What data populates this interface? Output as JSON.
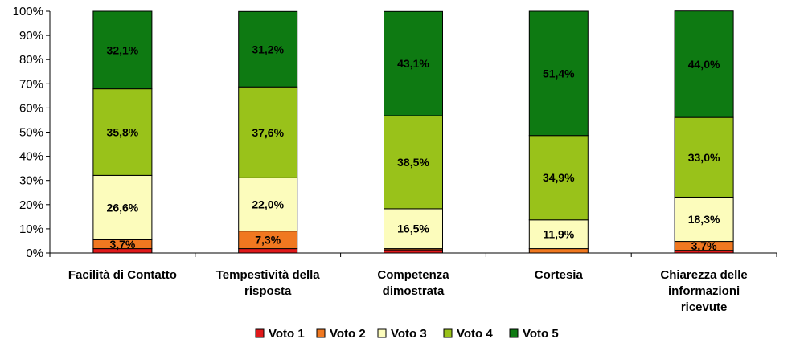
{
  "chart_data": {
    "type": "bar",
    "stacked": true,
    "categories": [
      [
        "Facilità di Contatto"
      ],
      [
        "Tempestività della",
        "risposta"
      ],
      [
        "Competenza",
        "dimostrata"
      ],
      [
        "Cortesia"
      ],
      [
        "Chiarezza delle",
        "informazioni",
        "ricevute"
      ]
    ],
    "series": [
      {
        "name": "Voto 1",
        "color": "#e0191b",
        "values": [
          1.8,
          1.8,
          1.3,
          0.0,
          1.1
        ],
        "labels": [
          "",
          "",
          "",
          "",
          ""
        ]
      },
      {
        "name": "Voto 2",
        "color": "#f07820",
        "values": [
          3.7,
          7.3,
          0.5,
          1.8,
          3.7
        ],
        "labels": [
          "3,7%",
          "7,3%",
          "",
          "",
          "3,7%"
        ]
      },
      {
        "name": "Voto 3",
        "color": "#fcfcbc",
        "values": [
          26.6,
          22.0,
          16.5,
          11.9,
          18.3
        ],
        "labels": [
          "26,6%",
          "22,0%",
          "16,5%",
          "11,9%",
          "18,3%"
        ]
      },
      {
        "name": "Voto 4",
        "color": "#99c21a",
        "values": [
          35.8,
          37.6,
          38.5,
          34.9,
          33.0
        ],
        "labels": [
          "35,8%",
          "37,6%",
          "38,5%",
          "34,9%",
          "33,0%"
        ]
      },
      {
        "name": "Voto 5",
        "color": "#0e7a12",
        "values": [
          32.1,
          31.2,
          43.1,
          51.4,
          44.0
        ],
        "labels": [
          "32,1%",
          "31,2%",
          "43,1%",
          "51,4%",
          "44,0%"
        ]
      }
    ],
    "yticks": [
      "0%",
      "10%",
      "20%",
      "30%",
      "40%",
      "50%",
      "60%",
      "70%",
      "80%",
      "90%",
      "100%"
    ],
    "ylim": [
      0,
      100
    ],
    "legend_position": "bottom",
    "grid": false
  }
}
